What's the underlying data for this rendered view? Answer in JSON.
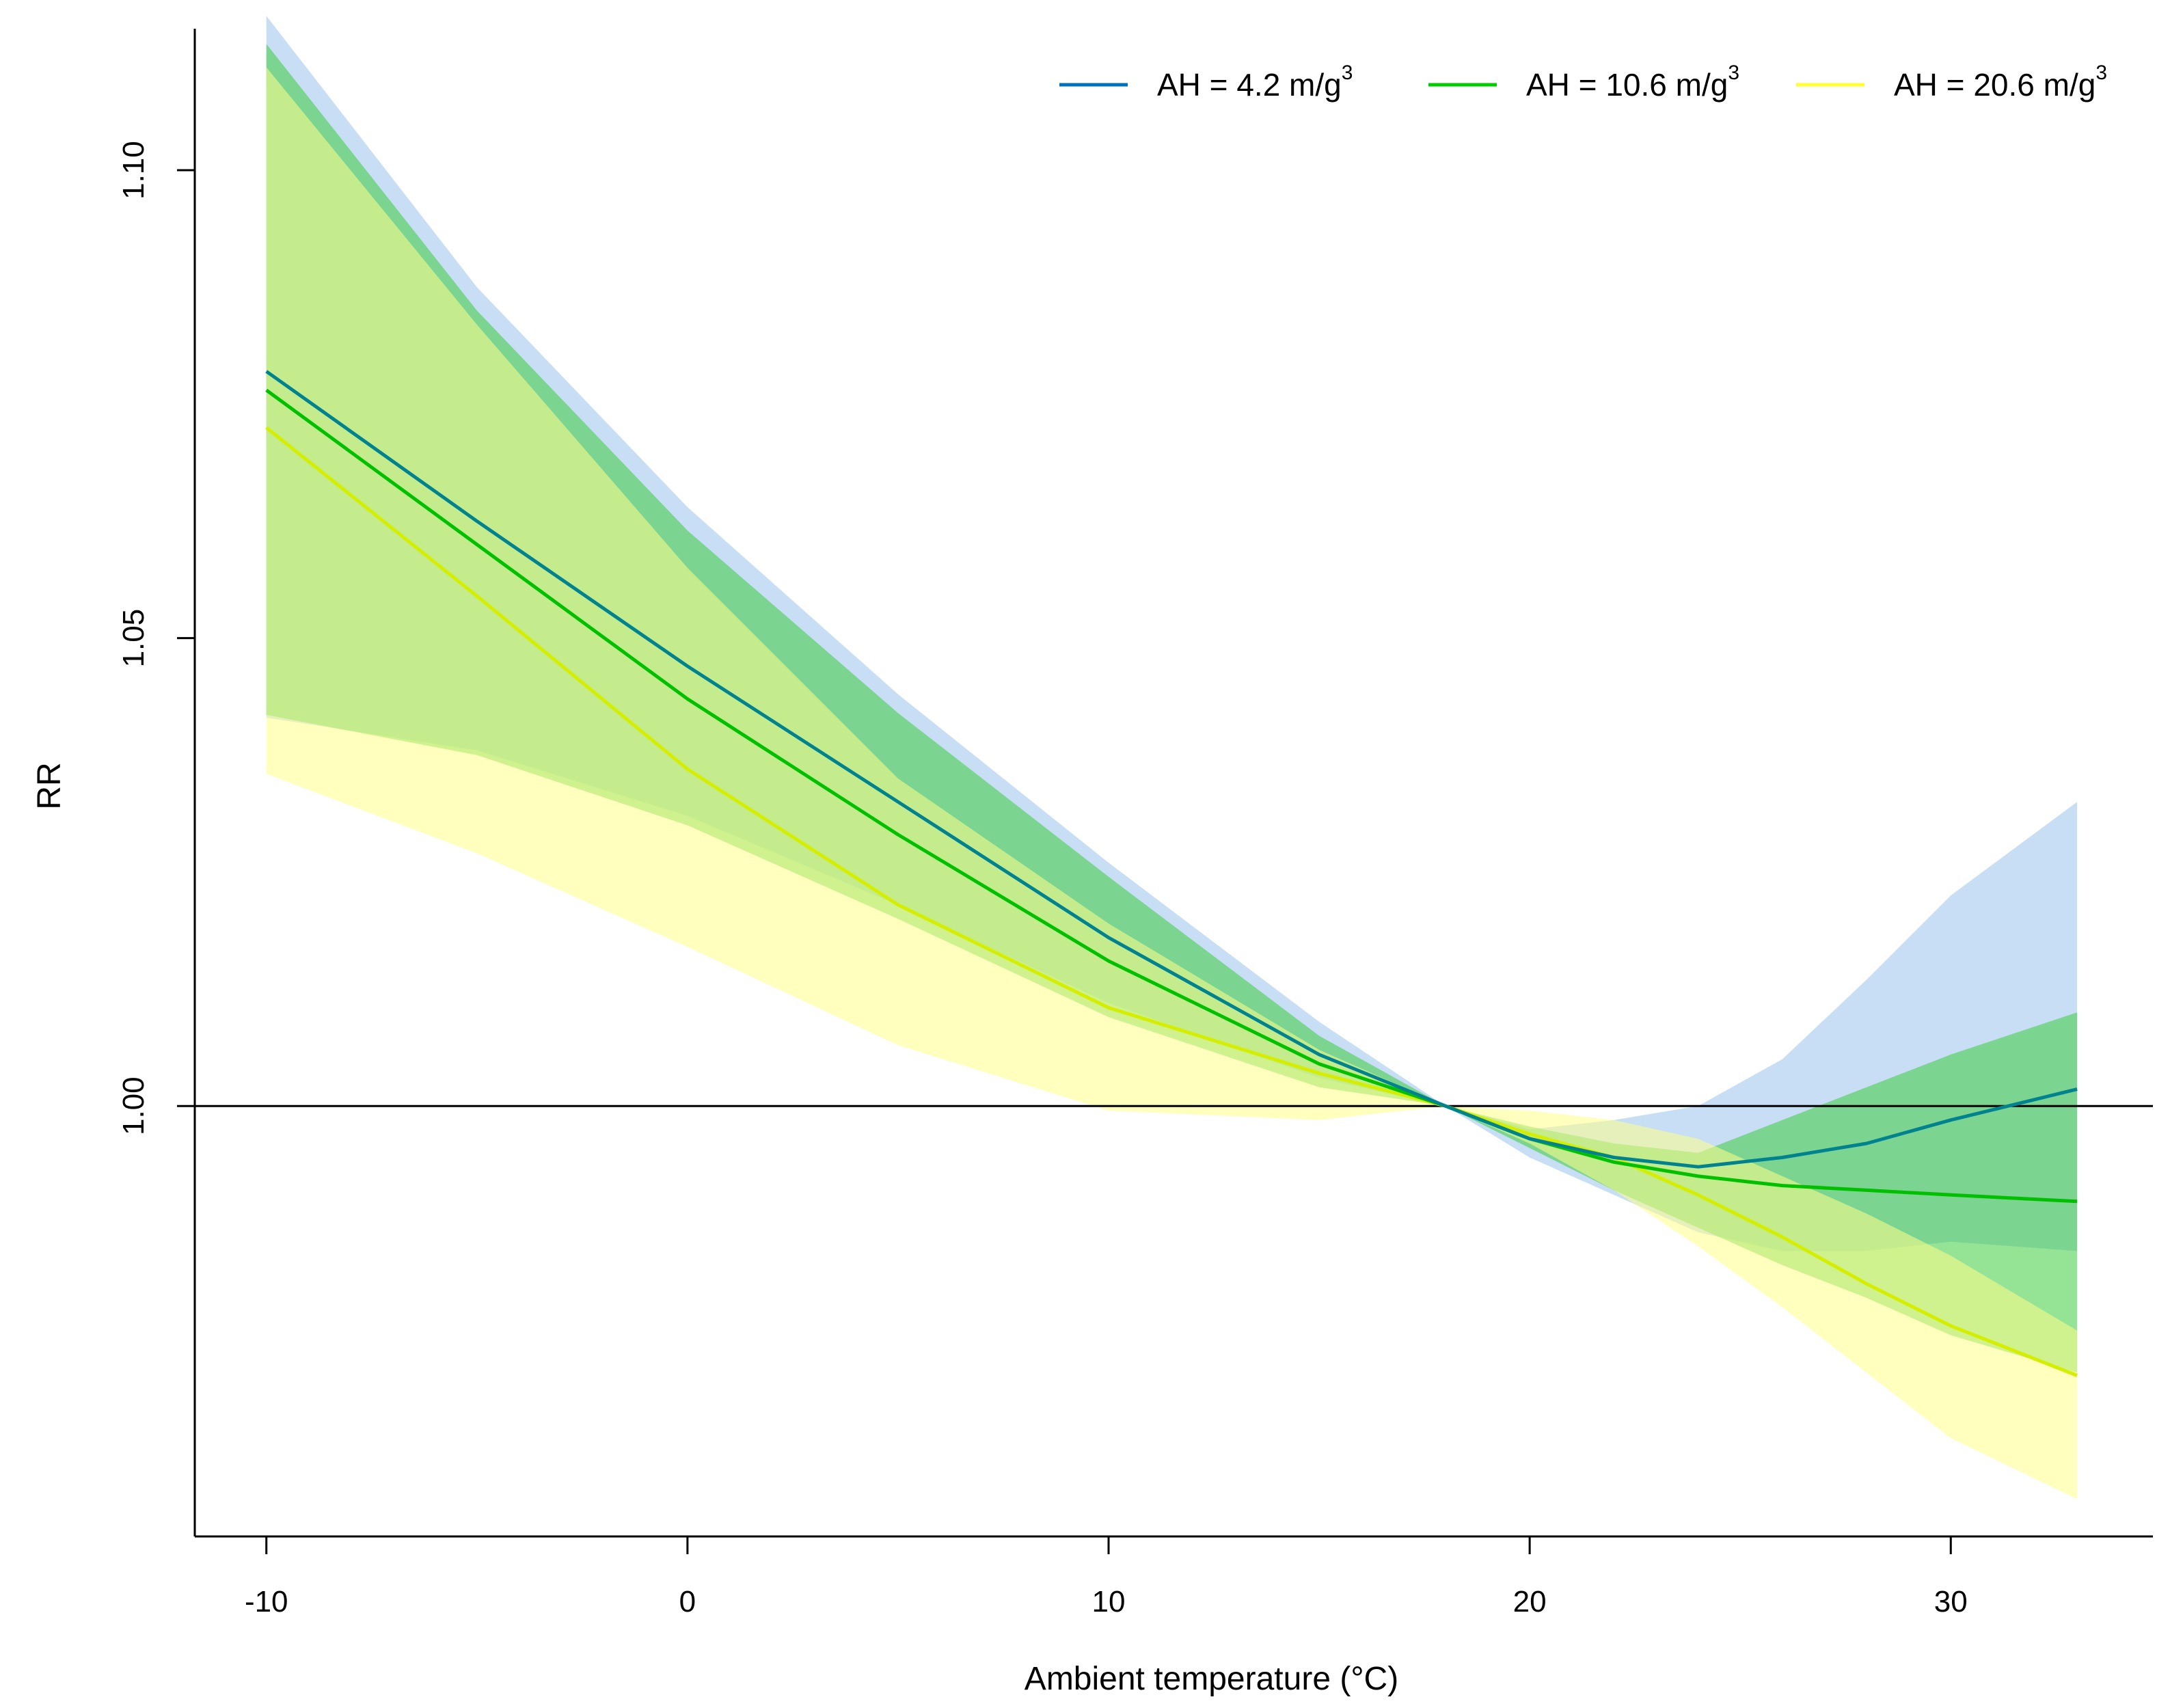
{
  "chart_data": {
    "type": "line",
    "title": "",
    "xlabel": "Ambient temperature (°C)",
    "ylabel": "RR",
    "xlim": [
      -11.7,
      34.8
    ],
    "ylim": [
      0.954,
      1.116
    ],
    "xticks": [
      -10,
      0,
      10,
      20,
      30
    ],
    "xtick_labels": [
      "-10",
      "0",
      "10",
      "20",
      "30"
    ],
    "yticks": [
      1.0,
      1.05,
      1.1
    ],
    "ytick_labels": [
      "1.00",
      "1.05",
      "1.10"
    ],
    "reference_line": 1.0,
    "grid": false,
    "legend_position": "top-right",
    "x": [
      -10,
      -5,
      0,
      5,
      10,
      15,
      18,
      20,
      22,
      24,
      26,
      28,
      30,
      33
    ],
    "series": [
      {
        "name": "AH = 4.2 m/g",
        "name_base": "AH = 4.2 m/g",
        "name_sup": "3",
        "color": "#0072bd",
        "band_color": "#aacdf0",
        "values": [
          1.0785,
          1.0625,
          1.047,
          1.0325,
          1.018,
          1.0055,
          1.0,
          0.9965,
          0.9945,
          0.9935,
          0.9945,
          0.996,
          0.9985,
          1.0018
        ],
        "lower": [
          1.0415,
          1.038,
          1.031,
          1.0215,
          1.011,
          1.003,
          1.0,
          0.9945,
          0.9905,
          0.9865,
          0.9845,
          0.9845,
          0.9855,
          0.9845
        ],
        "upper": [
          1.1165,
          1.0875,
          1.064,
          1.044,
          1.026,
          1.009,
          1.0,
          0.9975,
          0.9985,
          1.0,
          1.005,
          1.0135,
          1.0225,
          1.0325
        ]
      },
      {
        "name": "AH = 10.6 m/g",
        "name_base": "AH = 10.6 m/g",
        "name_sup": "3",
        "color": "#00cc00",
        "band_color": "#3ecc3e",
        "values": [
          1.0765,
          1.06,
          1.0435,
          1.029,
          1.0155,
          1.0045,
          1.0,
          0.9965,
          0.994,
          0.9925,
          0.9915,
          0.991,
          0.9905,
          0.9898
        ],
        "lower": [
          1.0418,
          1.0375,
          1.03,
          1.02,
          1.0095,
          1.002,
          1.0,
          0.9955,
          0.991,
          0.987,
          0.983,
          0.9795,
          0.9755,
          0.9715
        ],
        "upper": [
          1.1135,
          1.085,
          1.0615,
          1.042,
          1.0245,
          1.0075,
          1.0,
          0.9978,
          0.996,
          0.995,
          0.9985,
          1.002,
          1.0055,
          1.01
        ]
      },
      {
        "name": "AH = 20.6 m/g",
        "name_base": "AH = 20.6 m/g",
        "name_sup": "3",
        "color": "#ffff33",
        "band_color": "#ffff88",
        "values": [
          1.0725,
          1.0545,
          1.036,
          1.0215,
          1.0105,
          1.0035,
          1.0,
          0.997,
          0.9945,
          0.9905,
          0.986,
          0.981,
          0.9765,
          0.9712
        ],
        "lower": [
          1.0355,
          1.027,
          1.017,
          1.0065,
          0.9995,
          0.9985,
          1.0,
          0.996,
          0.991,
          0.985,
          0.9785,
          0.9715,
          0.9645,
          0.958
        ],
        "upper": [
          1.111,
          1.0835,
          1.0575,
          1.035,
          1.0195,
          1.006,
          1.0,
          0.9995,
          0.9985,
          0.9965,
          0.9925,
          0.9885,
          0.984,
          0.976
        ]
      }
    ]
  }
}
